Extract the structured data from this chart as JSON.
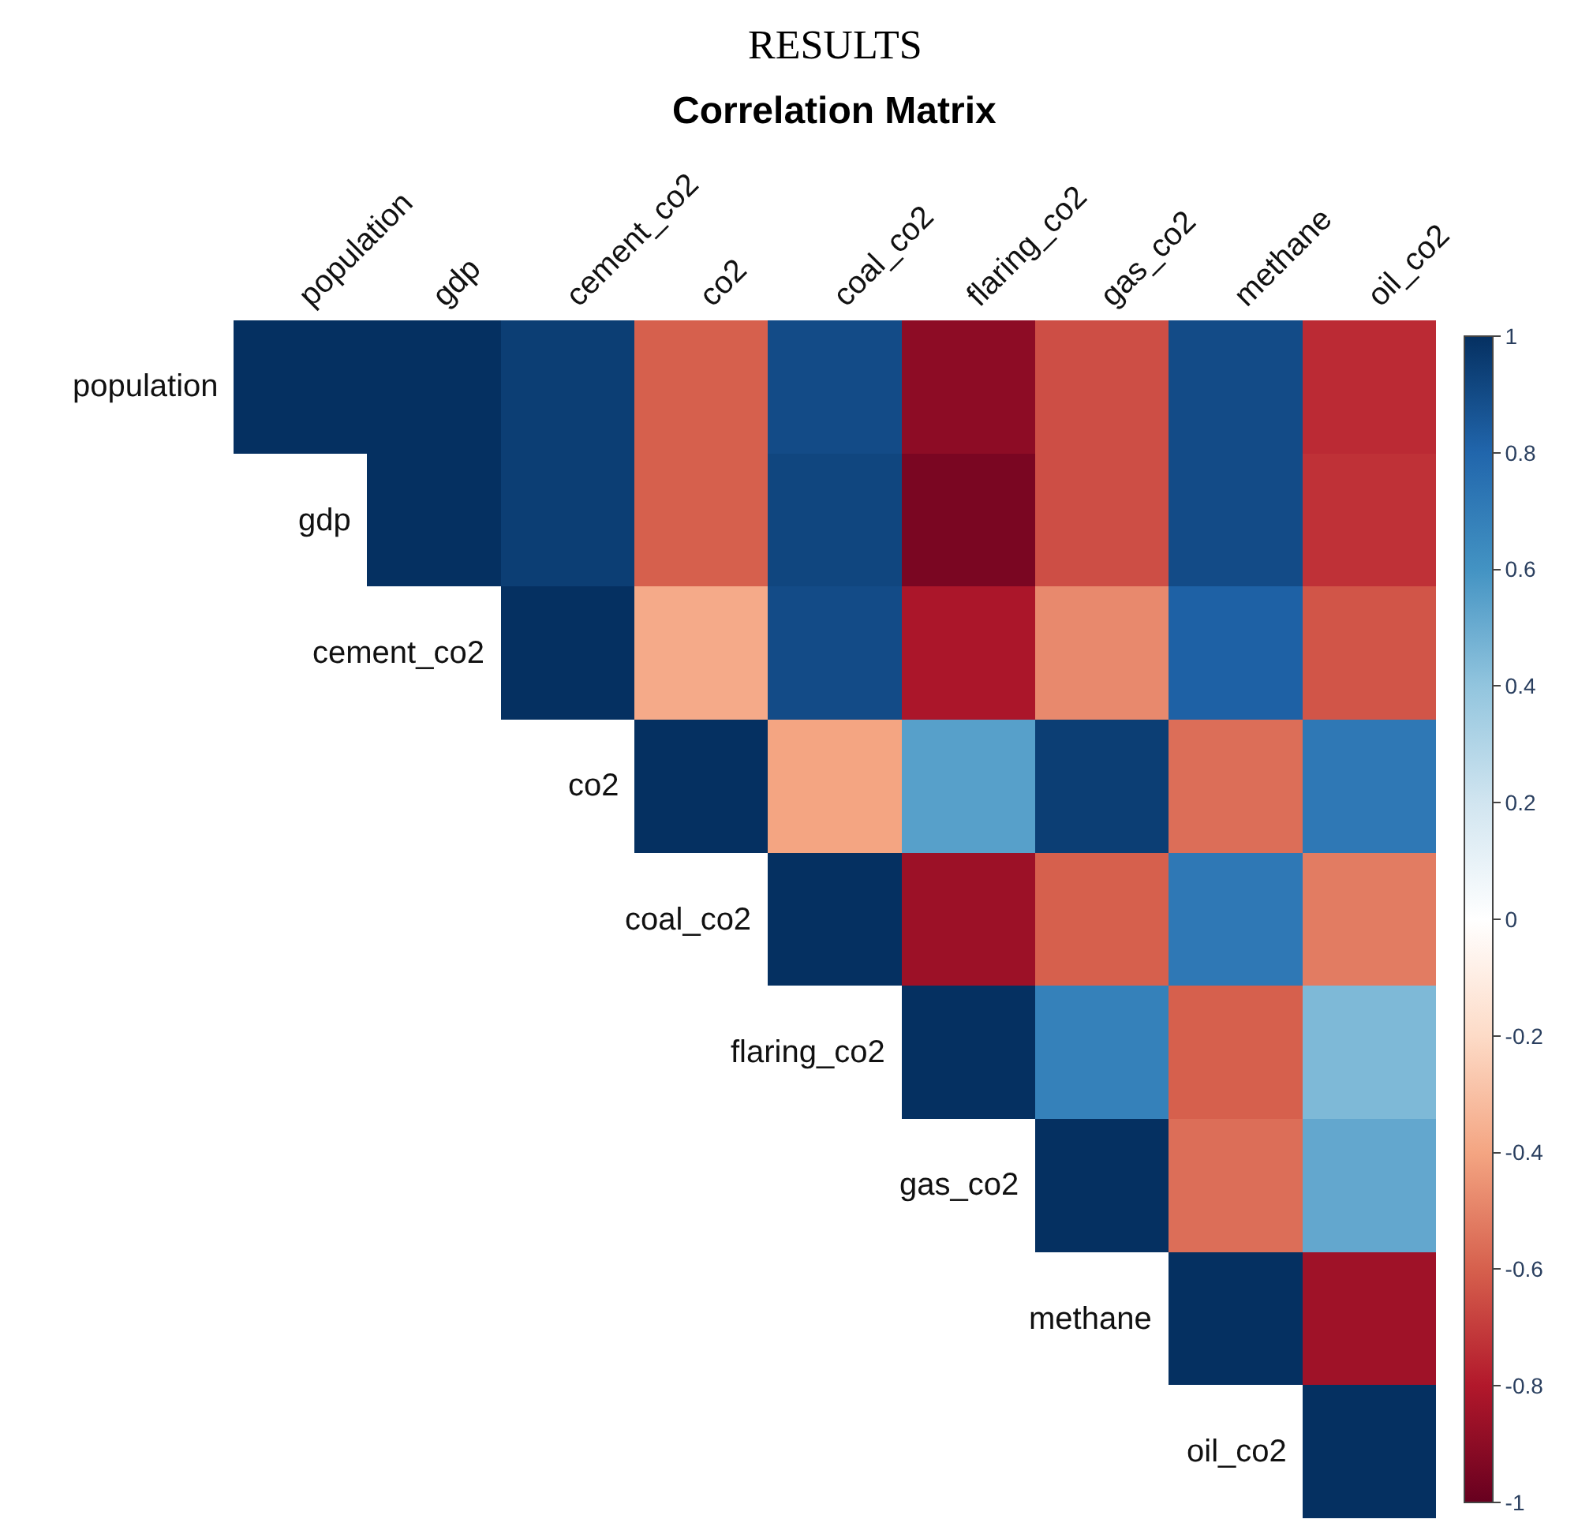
{
  "chart_data": {
    "type": "heatmap",
    "title": "RESULTS",
    "subtitle": "Correlation Matrix",
    "categories": [
      "population",
      "gdp",
      "cement_co2",
      "co2",
      "coal_co2",
      "flaring_co2",
      "gas_co2",
      "methane",
      "oil_co2"
    ],
    "y_categories": [
      "population",
      "gdp",
      "cement_co2",
      "co2",
      "coal_co2",
      "flaring_co2",
      "gas_co2",
      "methane",
      "oil_co2"
    ],
    "cells": [
      [
        1,
        1,
        0.95,
        -0.6,
        0.9,
        -0.9,
        -0.65,
        0.9,
        -0.75
      ],
      [
        null,
        1,
        0.95,
        -0.6,
        0.92,
        -0.95,
        -0.65,
        0.9,
        -0.73
      ],
      [
        null,
        null,
        1,
        -0.38,
        0.9,
        -0.82,
        -0.48,
        0.82,
        -0.63
      ],
      [
        null,
        null,
        null,
        1,
        -0.4,
        0.55,
        0.95,
        -0.56,
        0.72
      ],
      [
        null,
        null,
        null,
        null,
        1,
        -0.86,
        -0.6,
        0.72,
        -0.52
      ],
      [
        null,
        null,
        null,
        null,
        null,
        1,
        0.68,
        -0.6,
        0.45
      ],
      [
        null,
        null,
        null,
        null,
        null,
        null,
        1,
        -0.56,
        0.52
      ],
      [
        null,
        null,
        null,
        null,
        null,
        null,
        null,
        1,
        -0.85
      ],
      [
        null,
        null,
        null,
        null,
        null,
        null,
        null,
        null,
        1
      ]
    ],
    "clim": [
      -1,
      1
    ],
    "cticks": [
      -1,
      -0.8,
      -0.6,
      -0.4,
      -0.2,
      0,
      0.2,
      0.4,
      0.6,
      0.8,
      1
    ]
  }
}
